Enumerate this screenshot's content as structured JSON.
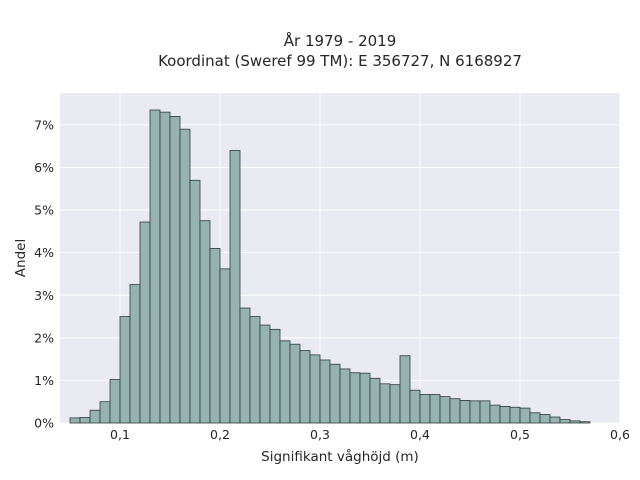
{
  "chart_data": {
    "type": "bar",
    "title_line1": "År 1979 - 2019",
    "title_line2": "Koordinat (Sweref 99 TM): E 356727, N 6168927",
    "xlabel": "Signifikant våghöjd (m)",
    "ylabel": "Andel",
    "xlim": [
      0.04,
      0.6
    ],
    "ylim": [
      0,
      7.75
    ],
    "x_ticks": [
      0.1,
      0.2,
      0.3,
      0.4,
      0.5,
      0.6
    ],
    "x_tick_labels": [
      "0,1",
      "0,2",
      "0,3",
      "0,4",
      "0,5",
      "0,6"
    ],
    "y_ticks": [
      0,
      1,
      2,
      3,
      4,
      5,
      6,
      7
    ],
    "y_tick_labels": [
      "0%",
      "1%",
      "2%",
      "3%",
      "4%",
      "5%",
      "6%",
      "7%"
    ],
    "bin_width": 0.01,
    "bin_starts": [
      0.05,
      0.06,
      0.07,
      0.08,
      0.09,
      0.1,
      0.11,
      0.12,
      0.13,
      0.14,
      0.15,
      0.16,
      0.17,
      0.18,
      0.19,
      0.2,
      0.21,
      0.22,
      0.23,
      0.24,
      0.25,
      0.26,
      0.27,
      0.28,
      0.29,
      0.3,
      0.31,
      0.32,
      0.33,
      0.34,
      0.35,
      0.36,
      0.37,
      0.38,
      0.39,
      0.4,
      0.41,
      0.42,
      0.43,
      0.44,
      0.45,
      0.46,
      0.47,
      0.48,
      0.49,
      0.5,
      0.51,
      0.52,
      0.53,
      0.54,
      0.55,
      0.56,
      0.57
    ],
    "values": [
      0.12,
      0.13,
      0.3,
      0.5,
      1.02,
      2.5,
      3.25,
      4.72,
      7.35,
      7.3,
      7.2,
      6.9,
      5.7,
      4.75,
      4.1,
      3.62,
      6.4,
      2.7,
      2.5,
      2.3,
      2.2,
      1.93,
      1.85,
      1.7,
      1.6,
      1.48,
      1.38,
      1.27,
      1.18,
      1.17,
      1.05,
      0.92,
      0.9,
      1.58,
      0.77,
      0.67,
      0.67,
      0.62,
      0.57,
      0.53,
      0.52,
      0.52,
      0.42,
      0.39,
      0.37,
      0.35,
      0.24,
      0.2,
      0.14,
      0.08,
      0.05,
      0.03,
      0.0
    ],
    "colors": {
      "bar_fill": "#97b3b1",
      "bar_edge": "#2f3b3a",
      "plot_bg": "#eaeaf2",
      "grid": "#ffffff"
    },
    "grid": true
  }
}
